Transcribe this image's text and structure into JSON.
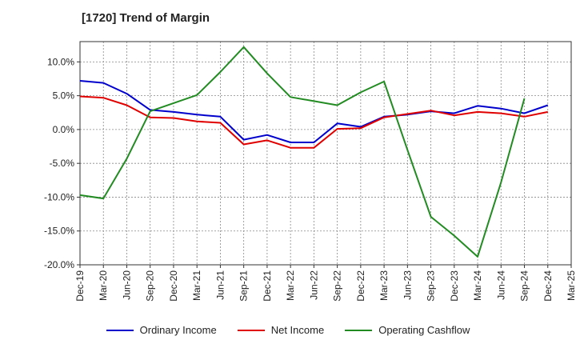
{
  "chart_data": {
    "type": "line",
    "title": "[1720]  Trend of Margin",
    "xlabel": "",
    "ylabel": "",
    "ylim": [
      -20,
      13
    ],
    "yticks": [
      10,
      5,
      0,
      -5,
      -10,
      -15,
      -20
    ],
    "ytick_labels": [
      "10.0%",
      "5.0%",
      "0.0%",
      "-5.0%",
      "-10.0%",
      "-15.0%",
      "-20.0%"
    ],
    "grid": true,
    "legend_position": "bottom",
    "categories": [
      "Dec-19",
      "Mar-20",
      "Jun-20",
      "Sep-20",
      "Dec-20",
      "Mar-21",
      "Jun-21",
      "Sep-21",
      "Dec-21",
      "Mar-22",
      "Jun-22",
      "Sep-22",
      "Dec-22",
      "Mar-23",
      "Jun-23",
      "Sep-23",
      "Dec-23",
      "Mar-24",
      "Jun-24",
      "Sep-24",
      "Dec-24",
      "Mar-25"
    ],
    "series": [
      {
        "name": "Ordinary Income",
        "color": "#0000cc",
        "values": [
          7.2,
          6.9,
          5.3,
          2.9,
          2.6,
          2.2,
          1.9,
          -1.5,
          -0.8,
          -1.9,
          -1.9,
          0.9,
          0.4,
          1.9,
          2.2,
          2.7,
          2.4,
          3.5,
          3.1,
          2.4,
          3.6,
          null
        ]
      },
      {
        "name": "Net Income",
        "color": "#e00000",
        "values": [
          4.9,
          4.7,
          3.6,
          1.8,
          1.7,
          1.2,
          1.0,
          -2.2,
          -1.6,
          -2.7,
          -2.7,
          0.1,
          0.2,
          1.8,
          2.3,
          2.8,
          2.1,
          2.6,
          2.4,
          1.9,
          2.6,
          null
        ]
      },
      {
        "name": "Operating Cashflow",
        "color": "#228b22",
        "values": [
          -9.7,
          -10.2,
          -4.3,
          2.7,
          3.9,
          5.1,
          8.5,
          12.2,
          8.3,
          4.8,
          4.2,
          3.6,
          5.5,
          7.1,
          -3.0,
          -12.9,
          -15.7,
          -18.8,
          -7.8,
          4.6,
          null,
          null
        ]
      }
    ]
  }
}
